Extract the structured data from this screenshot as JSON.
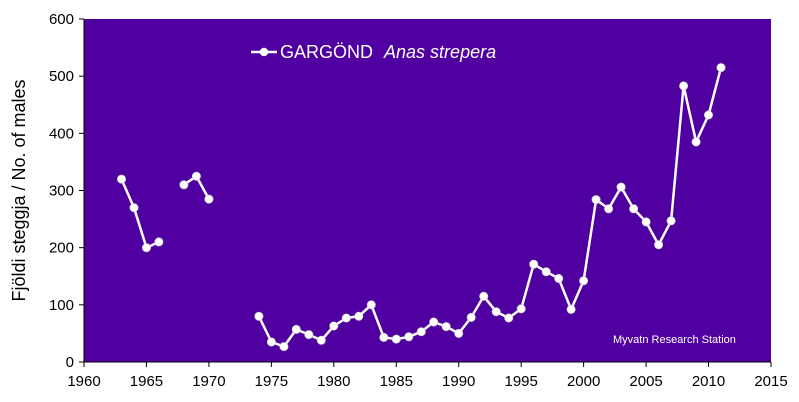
{
  "chart_data": {
    "type": "line",
    "title": "",
    "xlabel": "",
    "ylabel": "Fjöldi steggja / No. of males",
    "xlim": [
      1960,
      2015
    ],
    "ylim": [
      0,
      600
    ],
    "x_ticks": [
      "1960",
      "1965",
      "1970",
      "1975",
      "1980",
      "1985",
      "1990",
      "1995",
      "2000",
      "2005",
      "2010",
      "2015"
    ],
    "y_ticks": [
      "0",
      "100",
      "200",
      "300",
      "400",
      "500",
      "600"
    ],
    "grid": false,
    "legend_position": "top-center",
    "plot_background": "#5000a0",
    "line_color": "#ffffff",
    "marker_color": "#ffffff",
    "series": [
      {
        "name_prefix": "GARGÖND",
        "name_latin": "Anas strepera",
        "segments": [
          [
            [
              1963,
              320
            ],
            [
              1964,
              270
            ],
            [
              1965,
              200
            ],
            [
              1966,
              210
            ]
          ],
          [
            [
              1968,
              310
            ],
            [
              1969,
              325
            ],
            [
              1970,
              285
            ]
          ],
          [
            [
              1974,
              80
            ],
            [
              1975,
              35
            ],
            [
              1976,
              27
            ],
            [
              1977,
              57
            ],
            [
              1978,
              48
            ],
            [
              1979,
              38
            ],
            [
              1980,
              63
            ],
            [
              1981,
              77
            ],
            [
              1982,
              80
            ],
            [
              1983,
              100
            ],
            [
              1984,
              43
            ],
            [
              1985,
              40
            ],
            [
              1986,
              44
            ],
            [
              1987,
              53
            ],
            [
              1988,
              70
            ],
            [
              1989,
              62
            ],
            [
              1990,
              50
            ],
            [
              1991,
              78
            ],
            [
              1992,
              115
            ],
            [
              1993,
              88
            ],
            [
              1994,
              77
            ],
            [
              1995,
              93
            ],
            [
              1996,
              171
            ],
            [
              1997,
              158
            ],
            [
              1998,
              146
            ],
            [
              1999,
              92
            ],
            [
              2000,
              142
            ],
            [
              2001,
              284
            ],
            [
              2002,
              268
            ],
            [
              2003,
              306
            ],
            [
              2004,
              268
            ],
            [
              2005,
              245
            ],
            [
              2006,
              205
            ],
            [
              2007,
              247
            ],
            [
              2008,
              483
            ],
            [
              2009,
              385
            ],
            [
              2010,
              432
            ],
            [
              2011,
              515
            ]
          ]
        ]
      }
    ],
    "annotation": "Myvatn Research Station"
  }
}
